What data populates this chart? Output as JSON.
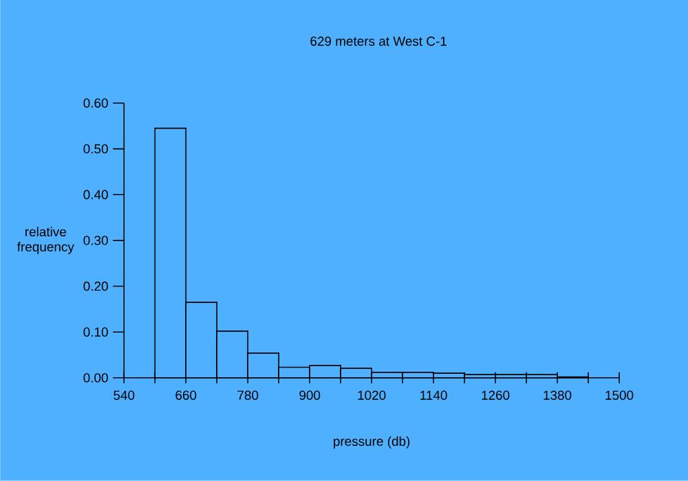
{
  "chart_data": {
    "type": "histogram",
    "title": "629 meters at West C-1",
    "xlabel": "pressure (db)",
    "ylabel": "relative frequency",
    "bins": [
      600,
      660,
      720,
      780,
      840,
      900,
      960,
      1020,
      1080,
      1140,
      1200,
      1260,
      1320,
      1380,
      1440
    ],
    "values": [
      0.545,
      0.165,
      0.102,
      0.054,
      0.023,
      0.027,
      0.021,
      0.012,
      0.012,
      0.01,
      0.007,
      0.007,
      0.007,
      0.002
    ],
    "color": "#000000",
    "xlim": [
      540,
      1500
    ],
    "xticks": [
      540,
      {
        "value": 600,
        "label": null
      },
      660,
      {
        "value": 720,
        "label": null
      },
      780,
      {
        "value": 840,
        "label": null
      },
      900,
      {
        "value": 960,
        "label": null
      },
      1020,
      {
        "value": 1080,
        "label": null
      },
      1140,
      {
        "value": 1200,
        "label": null
      },
      1260,
      {
        "value": 1320,
        "label": null
      },
      1380,
      {
        "value": 1440,
        "label": null
      },
      1500
    ],
    "ylim": [
      0,
      0.6
    ],
    "yticks": [
      {
        "value": 0,
        "label": "0.00"
      },
      {
        "value": 0.1,
        "label": "0.10"
      },
      {
        "value": 0.2,
        "label": "0.20"
      },
      {
        "value": 0.3,
        "label": "0.30"
      },
      {
        "value": 0.4,
        "label": "0.40"
      },
      {
        "value": 0.5,
        "label": "0.50"
      },
      {
        "value": 0.6,
        "label": "0.60"
      }
    ],
    "grid": false
  }
}
